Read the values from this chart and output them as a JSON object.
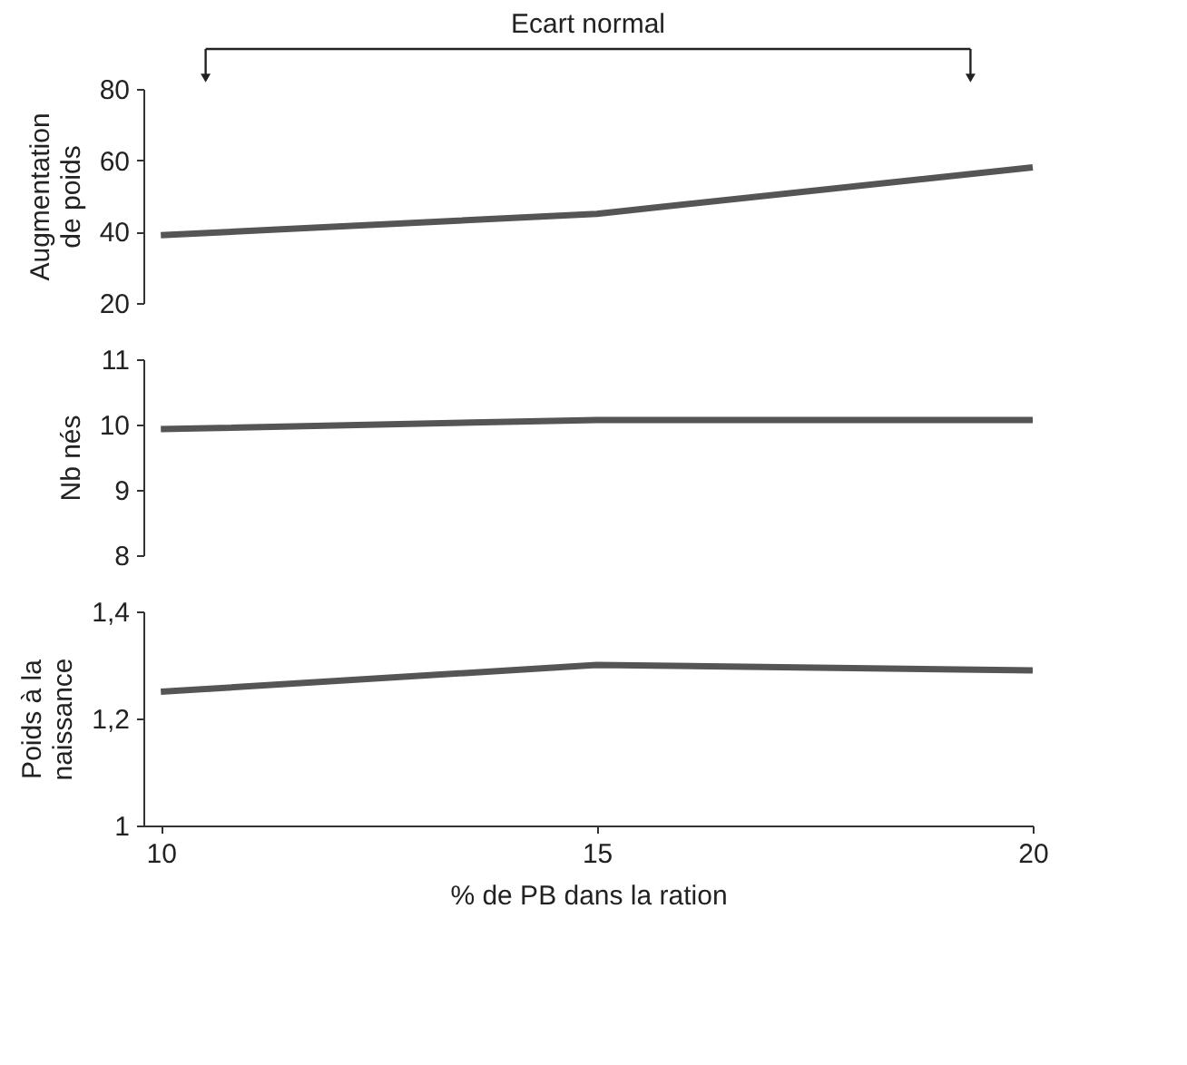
{
  "chart_data": [
    {
      "type": "line",
      "ylabel": "Augmentation\nde poids",
      "x": [
        10,
        15,
        20
      ],
      "values": [
        39,
        45,
        58
      ],
      "color": "#555555",
      "xlim": [
        9.8,
        20
      ],
      "ylim": [
        20,
        80
      ],
      "yticks": [
        20,
        40,
        60,
        80
      ],
      "tick_labels": "y",
      "marker": "none",
      "annotations": [
        "Ecart normal"
      ]
    },
    {
      "type": "line",
      "ylabel": "Nb nés",
      "x": [
        10,
        15,
        20
      ],
      "values": [
        9.93,
        10.07,
        10.07
      ],
      "color": "#555555",
      "xlim": [
        9.8,
        20
      ],
      "ylim": [
        8,
        11
      ],
      "yticks": [
        8,
        9,
        10,
        11
      ],
      "tick_labels": "y",
      "marker": "none"
    },
    {
      "type": "line",
      "ylabel": "Poids à la\nnaissance",
      "xlabel": "% de PB dans la ration",
      "x": [
        10,
        15,
        20
      ],
      "values": [
        1.25,
        1.3,
        1.29
      ],
      "color": "#555555",
      "xlim": [
        9.8,
        20
      ],
      "xticks": [
        10,
        15,
        20
      ],
      "ylim": [
        1,
        1.4
      ],
      "yticks": [
        1,
        {
          "value": 1.2,
          "label": "1,2"
        },
        {
          "value": 1.4,
          "label": "1,4"
        }
      ],
      "marker": "none"
    }
  ]
}
